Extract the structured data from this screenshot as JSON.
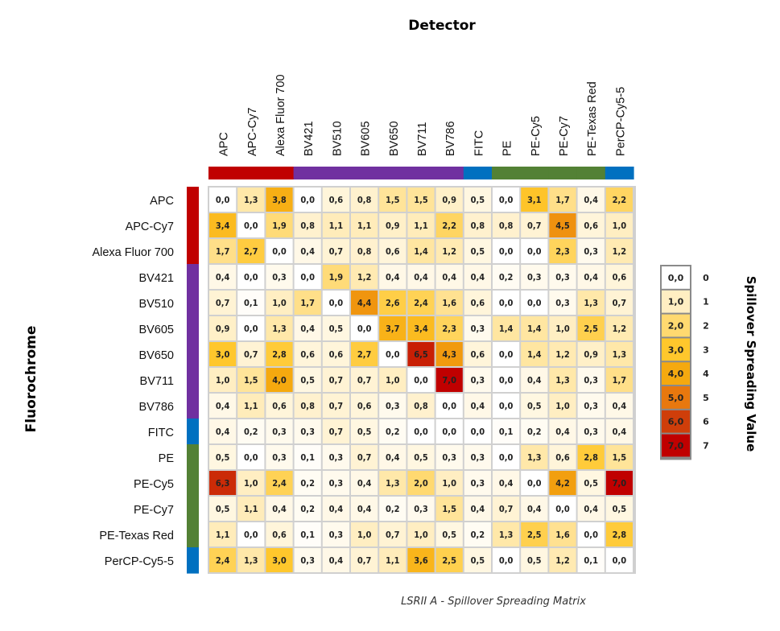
{
  "chart_data": {
    "type": "heatmap",
    "title": "Detector",
    "ylabel": "Fluorochrome",
    "caption": "LSRII A - Spillover Spreading Matrix",
    "colorbar_label": "Spillover Spreading Value",
    "x_categories": [
      "APC",
      "APC-Cy7",
      "Alexa Fluor 700",
      "BV421",
      "BV510",
      "BV605",
      "BV650",
      "BV711",
      "BV786",
      "FITC",
      "PE",
      "PE-Cy5",
      "PE-Cy7",
      "PE-Texas Red",
      "PerCP-Cy5-5"
    ],
    "y_categories": [
      "APC",
      "APC-Cy7",
      "Alexa Fluor 700",
      "BV421",
      "BV510",
      "BV605",
      "BV650",
      "BV711",
      "BV786",
      "FITC",
      "PE",
      "PE-Cy5",
      "PE-Cy7",
      "PE-Texas Red",
      "PerCP-Cy5-5"
    ],
    "laser_groups": [
      {
        "name": "red",
        "color": "#c00000",
        "members": [
          "APC",
          "APC-Cy7",
          "Alexa Fluor 700"
        ]
      },
      {
        "name": "violet",
        "color": "#7030a0",
        "members": [
          "BV421",
          "BV510",
          "BV605",
          "BV650",
          "BV711",
          "BV786"
        ]
      },
      {
        "name": "blue",
        "color": "#0070c0",
        "members": [
          "FITC"
        ]
      },
      {
        "name": "yellow-green",
        "color": "#538135",
        "members": [
          "PE",
          "PE-Cy5",
          "PE-Cy7",
          "PE-Texas Red"
        ]
      },
      {
        "name": "blue",
        "color": "#0070c0",
        "members": [
          "PerCP-Cy5-5"
        ]
      }
    ],
    "values": [
      [
        0.0,
        1.3,
        3.8,
        0.0,
        0.6,
        0.8,
        1.5,
        1.5,
        0.9,
        0.5,
        0.0,
        3.1,
        1.7,
        0.4,
        2.2
      ],
      [
        3.4,
        0.0,
        1.9,
        0.8,
        1.1,
        1.1,
        0.9,
        1.1,
        2.2,
        0.8,
        0.8,
        0.7,
        4.5,
        0.6,
        1.0
      ],
      [
        1.7,
        2.7,
        0.0,
        0.4,
        0.7,
        0.8,
        0.6,
        1.4,
        1.2,
        0.5,
        0.0,
        0.0,
        2.3,
        0.3,
        1.2
      ],
      [
        0.4,
        0.0,
        0.3,
        0.0,
        1.9,
        1.2,
        0.4,
        0.4,
        0.4,
        0.4,
        0.2,
        0.3,
        0.3,
        0.4,
        0.6
      ],
      [
        0.7,
        0.1,
        1.0,
        1.7,
        0.0,
        4.4,
        2.6,
        2.4,
        1.6,
        0.6,
        0.0,
        0.0,
        0.3,
        1.3,
        0.7
      ],
      [
        0.9,
        0.0,
        1.3,
        0.4,
        0.5,
        0.0,
        3.7,
        3.4,
        2.3,
        0.3,
        1.4,
        1.4,
        1.0,
        2.5,
        1.2
      ],
      [
        3.0,
        0.7,
        2.8,
        0.6,
        0.6,
        2.7,
        0.0,
        6.5,
        4.3,
        0.6,
        0.0,
        1.4,
        1.2,
        0.9,
        1.3
      ],
      [
        1.0,
        1.5,
        4.0,
        0.5,
        0.7,
        0.7,
        1.0,
        0.0,
        7.0,
        0.3,
        0.0,
        0.4,
        1.3,
        0.3,
        1.7
      ],
      [
        0.4,
        1.1,
        0.6,
        0.8,
        0.7,
        0.6,
        0.3,
        0.8,
        0.0,
        0.4,
        0.0,
        0.5,
        1.0,
        0.3,
        0.4
      ],
      [
        0.4,
        0.2,
        0.3,
        0.3,
        0.7,
        0.5,
        0.2,
        0.0,
        0.0,
        0.0,
        0.1,
        0.2,
        0.4,
        0.3,
        0.4
      ],
      [
        0.5,
        0.0,
        0.3,
        0.1,
        0.3,
        0.7,
        0.4,
        0.5,
        0.3,
        0.3,
        0.0,
        1.3,
        0.6,
        2.8,
        1.5
      ],
      [
        6.3,
        1.0,
        2.4,
        0.2,
        0.3,
        0.4,
        1.3,
        2.0,
        1.0,
        0.3,
        0.4,
        0.0,
        4.2,
        0.5,
        7.0
      ],
      [
        0.5,
        1.1,
        0.4,
        0.2,
        0.4,
        0.4,
        0.2,
        0.3,
        1.5,
        0.4,
        0.7,
        0.4,
        0.0,
        0.4,
        0.5
      ],
      [
        1.1,
        0.0,
        0.6,
        0.1,
        0.3,
        1.0,
        0.7,
        1.0,
        0.5,
        0.2,
        1.3,
        2.5,
        1.6,
        0.0,
        2.8
      ],
      [
        2.4,
        1.3,
        3.0,
        0.3,
        0.4,
        0.7,
        1.1,
        3.6,
        2.5,
        0.5,
        0.0,
        0.5,
        1.2,
        0.1,
        0.0
      ]
    ],
    "colorscale": {
      "range": [
        0,
        7
      ],
      "stops": [
        {
          "value": 0,
          "label": "0,0",
          "tick": "0",
          "color": "#ffffff"
        },
        {
          "value": 1,
          "label": "1,0",
          "tick": "1",
          "color": "#ffeec2"
        },
        {
          "value": 2,
          "label": "2,0",
          "tick": "2",
          "color": "#ffd970"
        },
        {
          "value": 3,
          "label": "3,0",
          "tick": "3",
          "color": "#ffc72c"
        },
        {
          "value": 4,
          "label": "4,0",
          "tick": "4",
          "color": "#f5a90f"
        },
        {
          "value": 5,
          "label": "5,0",
          "tick": "5",
          "color": "#e8780e"
        },
        {
          "value": 6,
          "label": "6,0",
          "tick": "6",
          "color": "#cf3e0a"
        },
        {
          "value": 7,
          "label": "7,0",
          "tick": "7",
          "color": "#c00000"
        }
      ]
    },
    "decimal_separator": ","
  }
}
